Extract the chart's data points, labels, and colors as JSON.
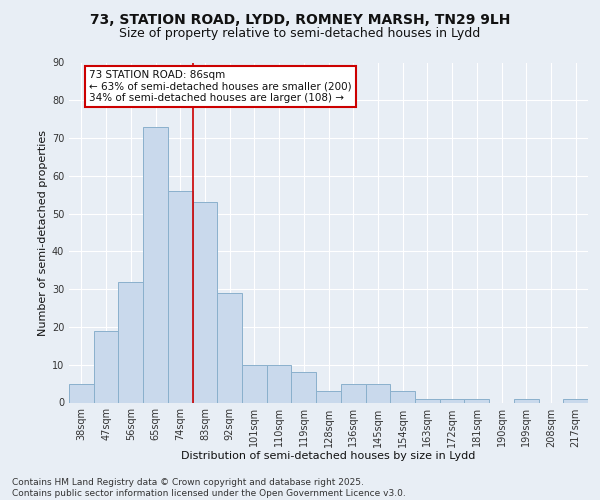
{
  "title_line1": "73, STATION ROAD, LYDD, ROMNEY MARSH, TN29 9LH",
  "title_line2": "Size of property relative to semi-detached houses in Lydd",
  "xlabel": "Distribution of semi-detached houses by size in Lydd",
  "ylabel": "Number of semi-detached properties",
  "bins": [
    "38sqm",
    "47sqm",
    "56sqm",
    "65sqm",
    "74sqm",
    "83sqm",
    "92sqm",
    "101sqm",
    "110sqm",
    "119sqm",
    "128sqm",
    "136sqm",
    "145sqm",
    "154sqm",
    "163sqm",
    "172sqm",
    "181sqm",
    "190sqm",
    "199sqm",
    "208sqm",
    "217sqm"
  ],
  "values": [
    5,
    19,
    32,
    73,
    56,
    53,
    29,
    10,
    10,
    8,
    3,
    5,
    5,
    3,
    1,
    1,
    1,
    0,
    1,
    0,
    1
  ],
  "bar_color": "#c9d9ec",
  "bar_edge_color": "#8ab0cc",
  "vline_color": "#cc0000",
  "vline_x": 4.5,
  "annotation_text": "73 STATION ROAD: 86sqm\n← 63% of semi-detached houses are smaller (200)\n34% of semi-detached houses are larger (108) →",
  "annotation_box_color": "#ffffff",
  "annotation_box_edge_color": "#cc0000",
  "ylim": [
    0,
    90
  ],
  "yticks": [
    0,
    10,
    20,
    30,
    40,
    50,
    60,
    70,
    80,
    90
  ],
  "bg_color": "#e8eef5",
  "plot_bg_color": "#e8eef5",
  "footer_text": "Contains HM Land Registry data © Crown copyright and database right 2025.\nContains public sector information licensed under the Open Government Licence v3.0.",
  "grid_color": "#ffffff",
  "title_fontsize": 10,
  "subtitle_fontsize": 9,
  "axis_label_fontsize": 8,
  "tick_fontsize": 7,
  "annotation_fontsize": 7.5,
  "footer_fontsize": 6.5
}
